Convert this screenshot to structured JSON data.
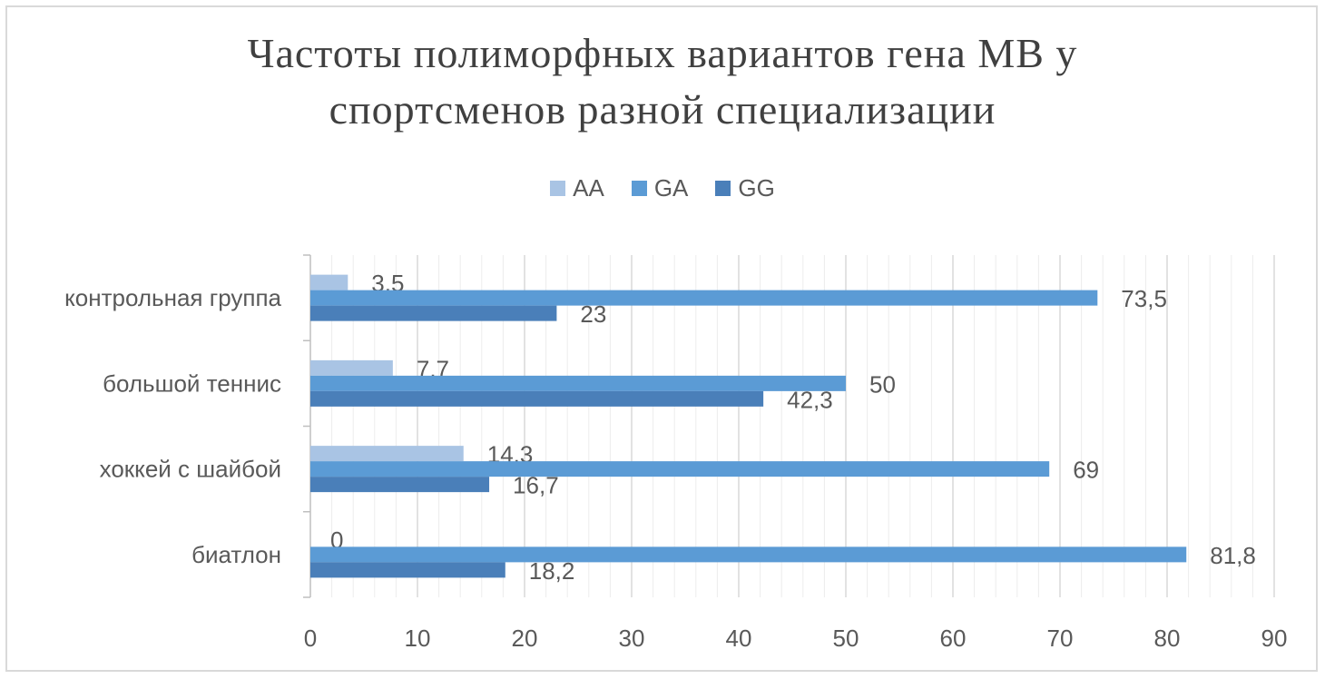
{
  "chart_data": {
    "type": "bar",
    "orientation": "horizontal",
    "title_lines": [
      "Частоты полиморфных вариантов гена MB у",
      "спортсменов разной специализации"
    ],
    "xlabel": "",
    "ylabel": "",
    "xlim": [
      0,
      90
    ],
    "x_ticks": [
      "0",
      "10",
      "20",
      "30",
      "40",
      "50",
      "60",
      "70",
      "80",
      "90"
    ],
    "grid": true,
    "legend_position": "top",
    "categories": [
      "контрольная группа",
      "большой теннис",
      "хоккей с шайбой",
      "биатлон"
    ],
    "series": [
      {
        "name": "AA",
        "color": "#a9c4e4",
        "values": [
          3.5,
          7.7,
          14.3,
          0
        ],
        "labels": [
          "3,5",
          "7,7",
          "14,3",
          "0"
        ]
      },
      {
        "name": "GA",
        "color": "#5b9bd5",
        "values": [
          73.5,
          50,
          69,
          81.8
        ],
        "labels": [
          "73,5",
          "50",
          "69",
          "81,8"
        ]
      },
      {
        "name": "GG",
        "color": "#4a7fb9",
        "values": [
          23,
          42.3,
          16.7,
          18.2
        ],
        "labels": [
          "23",
          "42,3",
          "16,7",
          "18,2"
        ]
      }
    ]
  }
}
